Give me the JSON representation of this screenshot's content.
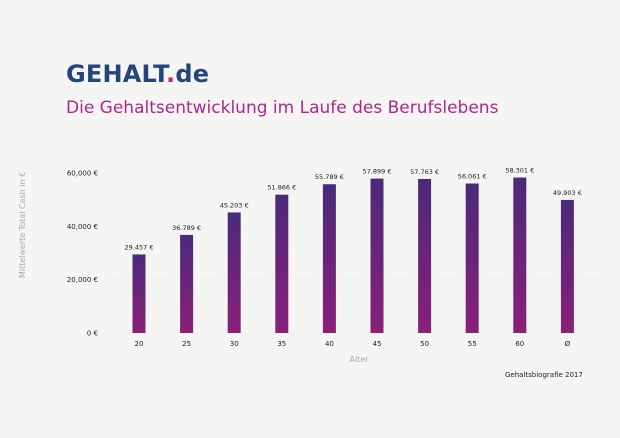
{
  "logo": {
    "main": "GEHALT",
    "dot": ".",
    "tld": "de"
  },
  "colors": {
    "bar_top": "#4a2a7a",
    "bar_bottom": "#8a1f79",
    "title": "#b0278a",
    "logo": "#24457a"
  },
  "source": "Gehaltsbiografie 2017",
  "chart_data": {
    "type": "bar",
    "title": "Die Gehaltsentwicklung im Laufe des Berufslebens",
    "xlabel": "Alter",
    "ylabel": "Mittelwerte Total Cash in €",
    "categories": [
      "20",
      "25",
      "30",
      "35",
      "40",
      "45",
      "50",
      "55",
      "60",
      "Ø"
    ],
    "values": [
      29457,
      36789,
      45203,
      51866,
      55789,
      57899,
      57763,
      56061,
      58301,
      49903
    ],
    "value_labels": [
      "29.457 €",
      "36.789 €",
      "45.203 €",
      "51.866 €",
      "55.789 €",
      "57.899 €",
      "57.763 €",
      "56.061 €",
      "58.301 €",
      "49.903 €"
    ],
    "yticks": [
      0,
      20000,
      40000,
      60000
    ],
    "ytick_labels": [
      "0 €",
      "20,000 €",
      "40,000 €",
      "60,000 €"
    ],
    "ylim": [
      0,
      60000
    ],
    "grid": true,
    "legend": "none"
  }
}
